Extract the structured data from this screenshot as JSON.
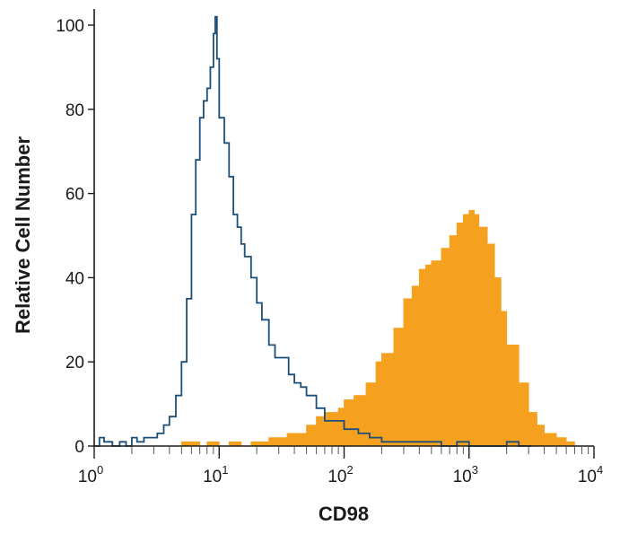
{
  "chart_data": {
    "type": "area",
    "title": "",
    "xlabel": "CD98",
    "ylabel": "Relative Cell Number",
    "xscale": "log",
    "xlim": [
      1,
      10000
    ],
    "ylim": [
      0,
      104
    ],
    "grid": false,
    "legend": "none",
    "y_ticks": [
      {
        "value": 0,
        "label": "0"
      },
      {
        "value": 20,
        "label": "20"
      },
      {
        "value": 40,
        "label": "40"
      },
      {
        "value": 60,
        "label": "60"
      },
      {
        "value": 80,
        "label": "80"
      },
      {
        "value": 100,
        "label": "100"
      }
    ],
    "x_ticks": [
      {
        "value": 1,
        "base": "10",
        "exp": "0"
      },
      {
        "value": 10,
        "base": "10",
        "exp": "1"
      },
      {
        "value": 100,
        "base": "10",
        "exp": "2"
      },
      {
        "value": 1000,
        "base": "10",
        "exp": "3"
      },
      {
        "value": 10000,
        "base": "10",
        "exp": "4"
      }
    ],
    "series": [
      {
        "style": "outline",
        "color": "#1b4f7a",
        "x": [
          1.0,
          1.1,
          1.2,
          1.4,
          1.6,
          1.8,
          2.0,
          2.2,
          2.5,
          2.8,
          3.2,
          3.6,
          4.0,
          4.5,
          5.0,
          5.5,
          6.0,
          6.5,
          7.0,
          7.5,
          8.0,
          8.5,
          9.0,
          9.3,
          9.6,
          10.0,
          11.0,
          12.0,
          13.0,
          14.0,
          15.0,
          16.0,
          18.0,
          20.0,
          22.0,
          25.0,
          28.0,
          32.0,
          36.0,
          40.0,
          45.0,
          50.0,
          60.0,
          70.0,
          80.0,
          100.0,
          130.0,
          160.0,
          200.0,
          250.0,
          300.0,
          400.0,
          500.0,
          600.0,
          700.0,
          800.0,
          1000.0,
          1500.0,
          2000.0,
          2500.0,
          3000.0
        ],
        "y": [
          0,
          2,
          1,
          0,
          1,
          0,
          2,
          1,
          2,
          2,
          3,
          5,
          7,
          12,
          20,
          35,
          55,
          68,
          78,
          82,
          85,
          90,
          98,
          102,
          92,
          78,
          72,
          64,
          55,
          52,
          48,
          45,
          40,
          34,
          30,
          24,
          21,
          21,
          17,
          15,
          14,
          12,
          9,
          6,
          6,
          4,
          3,
          2,
          1,
          1,
          1,
          1,
          1,
          0,
          0,
          1,
          0,
          0,
          1,
          0,
          0
        ]
      },
      {
        "style": "filled",
        "color": "#f6a01f",
        "x": [
          4.5,
          5.0,
          6.0,
          7.0,
          8.0,
          10.0,
          12.0,
          15.0,
          18.0,
          20.0,
          25.0,
          30.0,
          35.0,
          40.0,
          50.0,
          60.0,
          70.0,
          80.0,
          90.0,
          100.0,
          120.0,
          150.0,
          180.0,
          200.0,
          250.0,
          300.0,
          350.0,
          400.0,
          450.0,
          500.0,
          600.0,
          700.0,
          800.0,
          900.0,
          1000.0,
          1100.0,
          1200.0,
          1400.0,
          1600.0,
          1800.0,
          2000.0,
          2500.0,
          3000.0,
          3500.0,
          4000.0,
          5000.0,
          6000.0,
          7000.0
        ],
        "y": [
          0,
          1,
          1,
          0,
          1,
          0,
          1,
          0,
          1,
          1,
          2,
          2,
          3,
          3,
          5,
          7,
          8,
          8,
          9,
          11,
          12,
          15,
          20,
          22,
          28,
          35,
          38,
          42,
          43,
          44,
          47,
          50,
          53,
          55,
          56,
          55,
          52,
          48,
          40,
          32,
          24,
          15,
          8,
          5,
          3,
          2,
          1,
          0
        ]
      }
    ]
  }
}
